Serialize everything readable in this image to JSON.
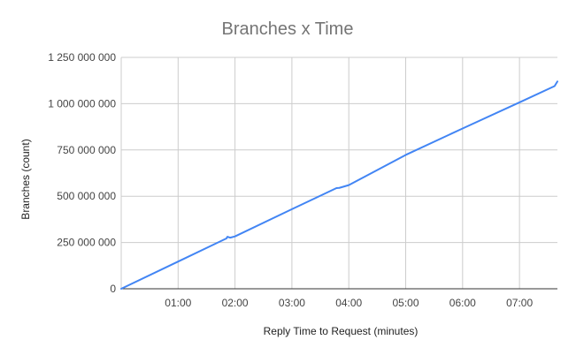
{
  "chart_data": {
    "type": "line",
    "title": "Branches x Time",
    "xlabel": "Reply Time to Request (minutes)",
    "ylabel": "Branches (count)",
    "xlim": [
      "00:00",
      "07:40"
    ],
    "ylim": [
      0,
      1250000000
    ],
    "x_ticks": [
      "01:00",
      "02:00",
      "03:00",
      "04:00",
      "05:00",
      "06:00",
      "07:00"
    ],
    "y_ticks": [
      "0",
      "250 000 000",
      "500 000 000",
      "750 000 000",
      "1 000 000 000",
      "1 250 000 000"
    ],
    "grid": true,
    "legend": "none",
    "colors": {
      "series": "#4285f4",
      "grid": "#cccccc",
      "axis": "#333333",
      "title": "#757575"
    },
    "series": [
      {
        "x": [
          "00:00",
          "01:00",
          "01:51",
          "01:52",
          "01:55",
          "02:00",
          "03:00",
          "03:47",
          "03:50",
          "04:00",
          "05:00",
          "06:00",
          "07:00",
          "07:37",
          "07:40"
        ],
        "values": [
          0,
          147000000,
          272000000,
          281000000,
          276000000,
          283000000,
          430000000,
          544000000,
          545000000,
          560000000,
          723000000,
          866000000,
          1007000000,
          1095000000,
          1120000000
        ]
      }
    ]
  }
}
